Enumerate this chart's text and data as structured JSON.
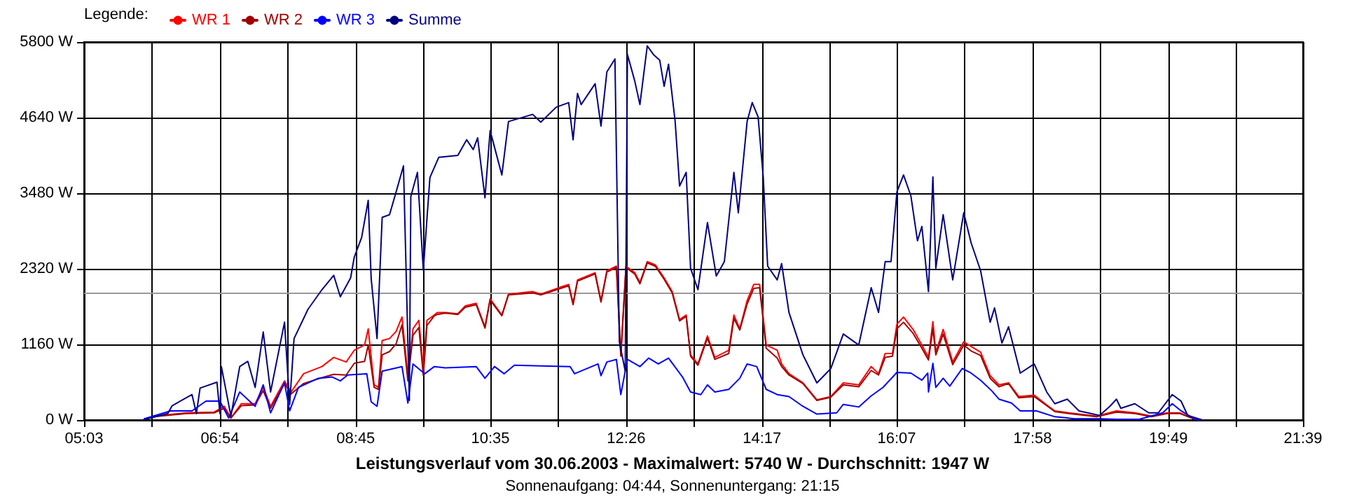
{
  "chart_data": {
    "type": "line",
    "title": "Leistungsverlauf vom 30.06.2003 - Maximalwert: 5740 W - Durchschnitt: 1947 W",
    "subtitle": "Sonnenaufgang: 04:44, Sonnenuntergang: 21:15",
    "legend_title": "Legende:",
    "legend": "top left",
    "grid": true,
    "marker": "none",
    "xlim": [
      5.05,
      21.65
    ],
    "xticks": [
      {
        "value": 5.05,
        "label": "05:03"
      },
      {
        "value": 5.975,
        "label": null
      },
      {
        "value": 6.9,
        "label": "06:54"
      },
      {
        "value": 7.825,
        "label": null
      },
      {
        "value": 8.75,
        "label": "08:45"
      },
      {
        "value": 9.667,
        "label": null
      },
      {
        "value": 10.583,
        "label": "10:35"
      },
      {
        "value": 11.508,
        "label": null
      },
      {
        "value": 12.433,
        "label": "12:26"
      },
      {
        "value": 13.358,
        "label": null
      },
      {
        "value": 14.283,
        "label": "14:17"
      },
      {
        "value": 15.2,
        "label": null
      },
      {
        "value": 16.117,
        "label": "16:07"
      },
      {
        "value": 17.042,
        "label": null
      },
      {
        "value": 17.967,
        "label": "17:58"
      },
      {
        "value": 18.892,
        "label": null
      },
      {
        "value": 19.817,
        "label": "19:49"
      },
      {
        "value": 20.733,
        "label": null
      },
      {
        "value": 21.65,
        "label": "21:39"
      }
    ],
    "ylim": [
      0,
      5800
    ],
    "yticks": [
      {
        "value": 0,
        "label": "0 W"
      },
      {
        "value": 1160,
        "label": "1160 W"
      },
      {
        "value": 2320,
        "label": "2320 W"
      },
      {
        "value": 3480,
        "label": "3480 W"
      },
      {
        "value": 4640,
        "label": "4640 W"
      },
      {
        "value": 5800,
        "label": "5800 W"
      }
    ],
    "ref_lines": [
      {
        "axis": "y",
        "value": 1947,
        "color": "#999999"
      }
    ],
    "series": [
      {
        "name": "WR 1",
        "color": "#ff0000",
        "x": [
          6.0,
          6.44,
          6.82,
          6.96,
          7.05,
          7.19,
          7.38,
          7.49,
          7.59,
          7.78,
          7.87,
          8.04,
          8.29,
          8.45,
          8.62,
          8.73,
          8.87,
          8.92,
          9.0,
          9.06,
          9.11,
          9.21,
          9.3,
          9.38,
          9.46,
          9.53,
          9.61,
          9.67,
          9.72,
          9.82,
          9.86,
          9.97,
          10.14,
          10.24,
          10.39,
          10.51,
          10.58,
          10.74,
          10.83,
          11.16,
          11.27,
          11.54,
          11.65,
          11.71,
          11.77,
          12.01,
          12.09,
          12.17,
          12.3,
          12.36,
          12.43,
          12.55,
          12.62,
          12.72,
          12.83,
          12.95,
          13.06,
          13.16,
          13.25,
          13.31,
          13.41,
          13.54,
          13.64,
          13.83,
          13.9,
          13.98,
          14.08,
          14.17,
          14.25,
          14.34,
          14.49,
          14.55,
          14.65,
          14.84,
          15.03,
          15.22,
          15.39,
          15.6,
          15.77,
          15.87,
          15.96,
          16.06,
          16.12,
          16.21,
          16.34,
          16.46,
          16.55,
          16.61,
          16.65,
          16.75,
          16.88,
          17.03,
          17.13,
          17.26,
          17.39,
          17.51,
          17.64,
          17.78,
          17.99,
          18.16,
          18.27,
          18.46,
          18.84,
          19.11,
          19.36,
          19.59,
          19.8,
          19.97,
          20.18,
          20.28
        ],
        "values": [
          60,
          110,
          120,
          210,
          30,
          250,
          250,
          500,
          210,
          600,
          430,
          710,
          820,
          960,
          890,
          1070,
          1150,
          1400,
          540,
          500,
          1220,
          1250,
          1360,
          1580,
          680,
          1400,
          1530,
          780,
          1530,
          1610,
          1650,
          1650,
          1630,
          1750,
          1790,
          1430,
          1860,
          1610,
          1930,
          1970,
          1930,
          2040,
          2080,
          1790,
          2150,
          2260,
          1830,
          2290,
          2360,
          1000,
          2360,
          2260,
          2110,
          2430,
          2380,
          2180,
          1970,
          1540,
          1610,
          1000,
          860,
          1290,
          960,
          1070,
          1610,
          1400,
          1830,
          2080,
          2080,
          1150,
          1070,
          860,
          710,
          570,
          310,
          360,
          570,
          540,
          820,
          710,
          1020,
          1020,
          1470,
          1580,
          1390,
          1150,
          960,
          1510,
          1040,
          1390,
          890,
          1200,
          1130,
          1040,
          680,
          540,
          570,
          360,
          380,
          230,
          140,
          110,
          60,
          140,
          110,
          60,
          110,
          110,
          10,
          0
        ]
      },
      {
        "name": "WR 2",
        "color": "#a00000",
        "x": [
          6.0,
          6.44,
          6.82,
          6.96,
          7.05,
          7.19,
          7.38,
          7.49,
          7.59,
          7.78,
          7.87,
          8.04,
          8.29,
          8.45,
          8.62,
          8.73,
          8.87,
          8.92,
          9.0,
          9.06,
          9.11,
          9.21,
          9.3,
          9.38,
          9.46,
          9.53,
          9.61,
          9.67,
          9.72,
          9.82,
          9.86,
          9.97,
          10.14,
          10.24,
          10.39,
          10.51,
          10.58,
          10.74,
          10.83,
          11.16,
          11.27,
          11.54,
          11.65,
          11.71,
          11.77,
          12.01,
          12.09,
          12.17,
          12.3,
          12.36,
          12.43,
          12.55,
          12.62,
          12.72,
          12.83,
          12.95,
          13.06,
          13.16,
          13.25,
          13.31,
          13.41,
          13.54,
          13.64,
          13.83,
          13.9,
          13.98,
          14.08,
          14.17,
          14.25,
          14.34,
          14.49,
          14.55,
          14.65,
          14.84,
          15.03,
          15.22,
          15.39,
          15.6,
          15.77,
          15.87,
          15.96,
          16.06,
          16.12,
          16.21,
          16.34,
          16.46,
          16.55,
          16.61,
          16.65,
          16.75,
          16.88,
          17.03,
          17.13,
          17.26,
          17.39,
          17.51,
          17.64,
          17.78,
          17.99,
          18.16,
          18.27,
          18.46,
          18.84,
          19.11,
          19.36,
          19.59,
          19.8,
          19.97,
          20.18,
          20.28
        ],
        "values": [
          50,
          100,
          110,
          180,
          30,
          220,
          230,
          450,
          180,
          560,
          400,
          560,
          650,
          700,
          690,
          870,
          900,
          1150,
          500,
          470,
          1000,
          1050,
          1170,
          1460,
          600,
          1300,
          1420,
          680,
          1450,
          1600,
          1620,
          1640,
          1620,
          1730,
          1770,
          1410,
          1840,
          1600,
          1920,
          1950,
          1920,
          2020,
          2060,
          1770,
          2130,
          2240,
          1810,
          2270,
          2340,
          980,
          2340,
          2240,
          2090,
          2410,
          2360,
          2160,
          1950,
          1520,
          1590,
          980,
          840,
          1260,
          930,
          1020,
          1560,
          1380,
          1780,
          2020,
          2030,
          1100,
          950,
          820,
          690,
          560,
          300,
          350,
          540,
          510,
          760,
          690,
          960,
          980,
          1400,
          1500,
          1330,
          1100,
          920,
          1400,
          1000,
          1320,
          850,
          1150,
          1060,
          990,
          640,
          510,
          560,
          340,
          360,
          220,
          130,
          100,
          50,
          120,
          100,
          50,
          100,
          100,
          10,
          0
        ]
      },
      {
        "name": "WR 3",
        "color": "#0000ff",
        "x": [
          5.87,
          6.23,
          6.52,
          6.71,
          6.9,
          7.02,
          7.17,
          7.38,
          7.49,
          7.59,
          7.78,
          7.85,
          7.97,
          8.24,
          8.43,
          8.54,
          8.64,
          8.9,
          8.96,
          9.04,
          9.11,
          9.38,
          9.46,
          9.53,
          9.69,
          9.82,
          9.97,
          10.39,
          10.51,
          10.64,
          10.77,
          10.91,
          11.67,
          11.73,
          12.05,
          12.09,
          12.17,
          12.3,
          12.36,
          12.45,
          12.62,
          12.74,
          12.87,
          13.01,
          13.2,
          13.31,
          13.45,
          13.54,
          13.64,
          13.83,
          13.98,
          14.08,
          14.21,
          14.34,
          14.49,
          14.65,
          14.84,
          15.03,
          15.3,
          15.39,
          15.6,
          15.77,
          15.93,
          16.12,
          16.31,
          16.46,
          16.54,
          16.55,
          16.61,
          16.65,
          16.75,
          16.84,
          17.01,
          17.13,
          17.26,
          17.41,
          17.51,
          17.68,
          17.8,
          18.02,
          18.27,
          18.54,
          18.88,
          19.11,
          19.42,
          19.74,
          19.87,
          19.99,
          20.18,
          20.28
        ],
        "values": [
          20,
          140,
          140,
          290,
          290,
          30,
          430,
          210,
          540,
          110,
          570,
          140,
          500,
          640,
          660,
          600,
          690,
          710,
          280,
          210,
          750,
          820,
          260,
          860,
          710,
          820,
          800,
          820,
          640,
          820,
          710,
          840,
          820,
          710,
          860,
          680,
          890,
          930,
          390,
          930,
          820,
          950,
          860,
          950,
          660,
          430,
          390,
          540,
          430,
          470,
          640,
          860,
          820,
          470,
          390,
          360,
          210,
          90,
          110,
          240,
          200,
          370,
          500,
          730,
          720,
          610,
          720,
          430,
          870,
          500,
          640,
          520,
          790,
          720,
          610,
          450,
          320,
          260,
          140,
          140,
          50,
          20,
          20,
          10,
          10,
          110,
          250,
          140,
          10,
          0
        ]
      },
      {
        "name": "Summe",
        "color": "#000080",
        "x": [
          5.85,
          6.19,
          6.25,
          6.52,
          6.58,
          6.63,
          6.86,
          6.9,
          6.92,
          7.05,
          7.17,
          7.28,
          7.38,
          7.49,
          7.59,
          7.78,
          7.85,
          7.91,
          8.1,
          8.29,
          8.45,
          8.54,
          8.68,
          8.73,
          8.83,
          8.92,
          8.96,
          9.04,
          9.11,
          9.21,
          9.3,
          9.4,
          9.48,
          9.5,
          9.59,
          9.67,
          9.76,
          9.88,
          10.14,
          10.26,
          10.35,
          10.41,
          10.51,
          10.58,
          10.74,
          10.83,
          11.16,
          11.27,
          11.48,
          11.65,
          11.71,
          11.77,
          11.82,
          12.01,
          12.09,
          12.17,
          12.28,
          12.34,
          12.42,
          12.45,
          12.55,
          12.62,
          12.72,
          12.81,
          12.89,
          12.95,
          13.01,
          13.1,
          13.16,
          13.25,
          13.31,
          13.41,
          13.54,
          13.66,
          13.77,
          13.9,
          13.96,
          14.08,
          14.15,
          14.23,
          14.3,
          14.36,
          14.49,
          14.55,
          14.65,
          14.84,
          15.03,
          15.22,
          15.39,
          15.6,
          15.77,
          15.87,
          15.96,
          16.04,
          16.12,
          16.21,
          16.31,
          16.4,
          16.46,
          16.55,
          16.61,
          16.65,
          16.75,
          16.88,
          17.03,
          17.13,
          17.26,
          17.39,
          17.45,
          17.55,
          17.64,
          17.8,
          17.99,
          18.16,
          18.27,
          18.44,
          18.6,
          18.88,
          19.02,
          19.11,
          19.17,
          19.36,
          19.55,
          19.68,
          19.87,
          19.99,
          20.08,
          20.28
        ],
        "values": [
          0,
          100,
          220,
          390,
          100,
          490,
          580,
          100,
          820,
          60,
          820,
          900,
          500,
          1350,
          430,
          1500,
          240,
          1250,
          1700,
          2000,
          2220,
          1890,
          2180,
          2500,
          2800,
          3370,
          2170,
          1250,
          3110,
          3150,
          3500,
          3900,
          300,
          3430,
          3800,
          2300,
          3720,
          4030,
          4060,
          4300,
          4150,
          4330,
          3410,
          4440,
          3760,
          4580,
          4690,
          4570,
          4800,
          4870,
          4300,
          5010,
          4840,
          5160,
          4510,
          5340,
          5540,
          1200,
          750,
          5610,
          5200,
          4840,
          5740,
          5600,
          5520,
          5120,
          5460,
          4580,
          3590,
          3800,
          2330,
          2000,
          3030,
          2210,
          2430,
          3800,
          3180,
          4580,
          4870,
          4650,
          3720,
          2360,
          2150,
          2400,
          1650,
          1000,
          570,
          790,
          1320,
          1150,
          2030,
          1650,
          2430,
          2430,
          3500,
          3760,
          3440,
          2750,
          2970,
          1970,
          3730,
          2330,
          3150,
          2150,
          3180,
          2720,
          2290,
          1500,
          1720,
          1180,
          1430,
          720,
          860,
          430,
          250,
          320,
          140,
          70,
          210,
          320,
          180,
          250,
          110,
          110,
          390,
          290,
          70,
          0
        ]
      }
    ]
  }
}
